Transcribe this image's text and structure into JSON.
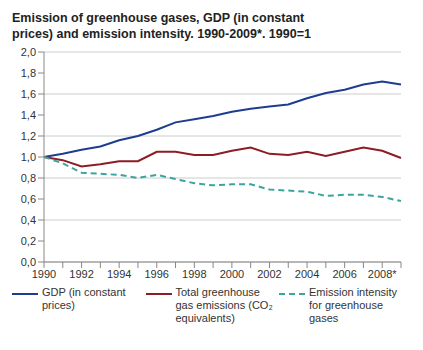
{
  "chart_data": {
    "type": "line",
    "title": "Emission of greenhouse gases, GDP (in constant prices) and emission intensity. 1990-2009*. 1990=1",
    "categories": [
      "1990",
      null,
      "1992",
      null,
      "1994",
      null,
      "1996",
      null,
      "1998",
      null,
      "2000",
      null,
      "2002",
      null,
      "2004",
      null,
      "2006",
      null,
      "2008*",
      null
    ],
    "series": [
      {
        "name": "GDP (in constant prices)",
        "color": "#1d3d8f",
        "line_style": "solid",
        "values": [
          1.0,
          1.03,
          1.07,
          1.1,
          1.16,
          1.2,
          1.26,
          1.33,
          1.36,
          1.39,
          1.43,
          1.46,
          1.48,
          1.5,
          1.56,
          1.61,
          1.64,
          1.69,
          1.72,
          1.69
        ]
      },
      {
        "name": "Total greenhouse gas emissions (CO₂ equivalents)",
        "color": "#8e1c24",
        "line_style": "solid",
        "values": [
          1.0,
          0.97,
          0.91,
          0.93,
          0.96,
          0.96,
          1.05,
          1.05,
          1.02,
          1.02,
          1.06,
          1.09,
          1.03,
          1.02,
          1.05,
          1.01,
          1.05,
          1.09,
          1.06,
          0.99
        ]
      },
      {
        "name": "Emission intensity for greenhouse gases",
        "color": "#3aa5a0",
        "line_style": "dashed",
        "values": [
          1.0,
          0.94,
          0.85,
          0.84,
          0.83,
          0.8,
          0.83,
          0.79,
          0.75,
          0.73,
          0.74,
          0.74,
          0.69,
          0.68,
          0.67,
          0.63,
          0.64,
          0.64,
          0.62,
          0.58
        ]
      }
    ],
    "ylim": [
      0,
      2
    ],
    "yticks": [
      {
        "value": 0,
        "label": "0,0"
      },
      {
        "value": 0.2,
        "label": "0,2"
      },
      {
        "value": 0.4,
        "label": "0,4"
      },
      {
        "value": 0.6,
        "label": "0,6"
      },
      {
        "value": 0.8,
        "label": "0,8"
      },
      {
        "value": 1,
        "label": "1,0"
      },
      {
        "value": 1.2,
        "label": "1,2"
      },
      {
        "value": 1.4,
        "label": "1,4"
      },
      {
        "value": 1.6,
        "label": "1,6"
      },
      {
        "value": 1.8,
        "label": "1,8"
      },
      {
        "value": 2,
        "label": "2,0"
      }
    ],
    "grid": true,
    "legend": "bottom"
  }
}
